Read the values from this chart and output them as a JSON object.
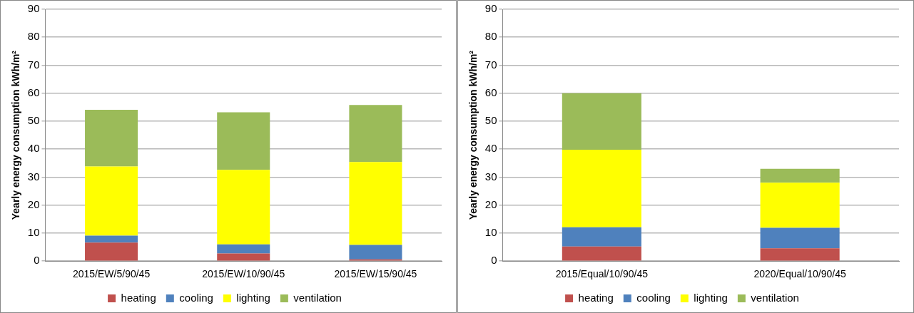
{
  "chart_data": [
    {
      "type": "bar",
      "stacked": true,
      "ylabel": "Yearly energy consumption kWh/m²",
      "categories": [
        "2015/EW/5/90/45",
        "2015/EW/10/90/45",
        "2015/EW/15/90/45"
      ],
      "ylim": [
        0,
        90
      ],
      "yticks": [
        0,
        10,
        20,
        30,
        40,
        50,
        60,
        70,
        80,
        90
      ],
      "grid": "y",
      "legend": "bottom",
      "series": [
        {
          "name": "heating",
          "color": "#c0504d",
          "values": [
            6.6,
            2.7,
            0.6
          ]
        },
        {
          "name": "cooling",
          "color": "#4f81bd",
          "values": [
            2.5,
            3.3,
            5.2
          ]
        },
        {
          "name": "lighting",
          "color": "#ffff00",
          "values": [
            24.7,
            26.6,
            29.6
          ]
        },
        {
          "name": "ventilation",
          "color": "#9bbb59",
          "values": [
            20.3,
            20.6,
            20.4
          ]
        }
      ]
    },
    {
      "type": "bar",
      "stacked": true,
      "ylabel": "Yearly energy consumption kWh/m²",
      "categories": [
        "2015/Equal/10/90/45",
        "2020/Equal/10/90/45"
      ],
      "ylim": [
        0,
        90
      ],
      "yticks": [
        0,
        10,
        20,
        30,
        40,
        50,
        60,
        70,
        80,
        90
      ],
      "grid": "y",
      "legend": "bottom",
      "series": [
        {
          "name": "heating",
          "color": "#c0504d",
          "values": [
            5.2,
            4.6
          ]
        },
        {
          "name": "cooling",
          "color": "#4f81bd",
          "values": [
            6.9,
            7.3
          ]
        },
        {
          "name": "lighting",
          "color": "#ffff00",
          "values": [
            27.7,
            16.1
          ]
        },
        {
          "name": "ventilation",
          "color": "#9bbb59",
          "values": [
            20.2,
            5.0
          ]
        }
      ]
    }
  ]
}
